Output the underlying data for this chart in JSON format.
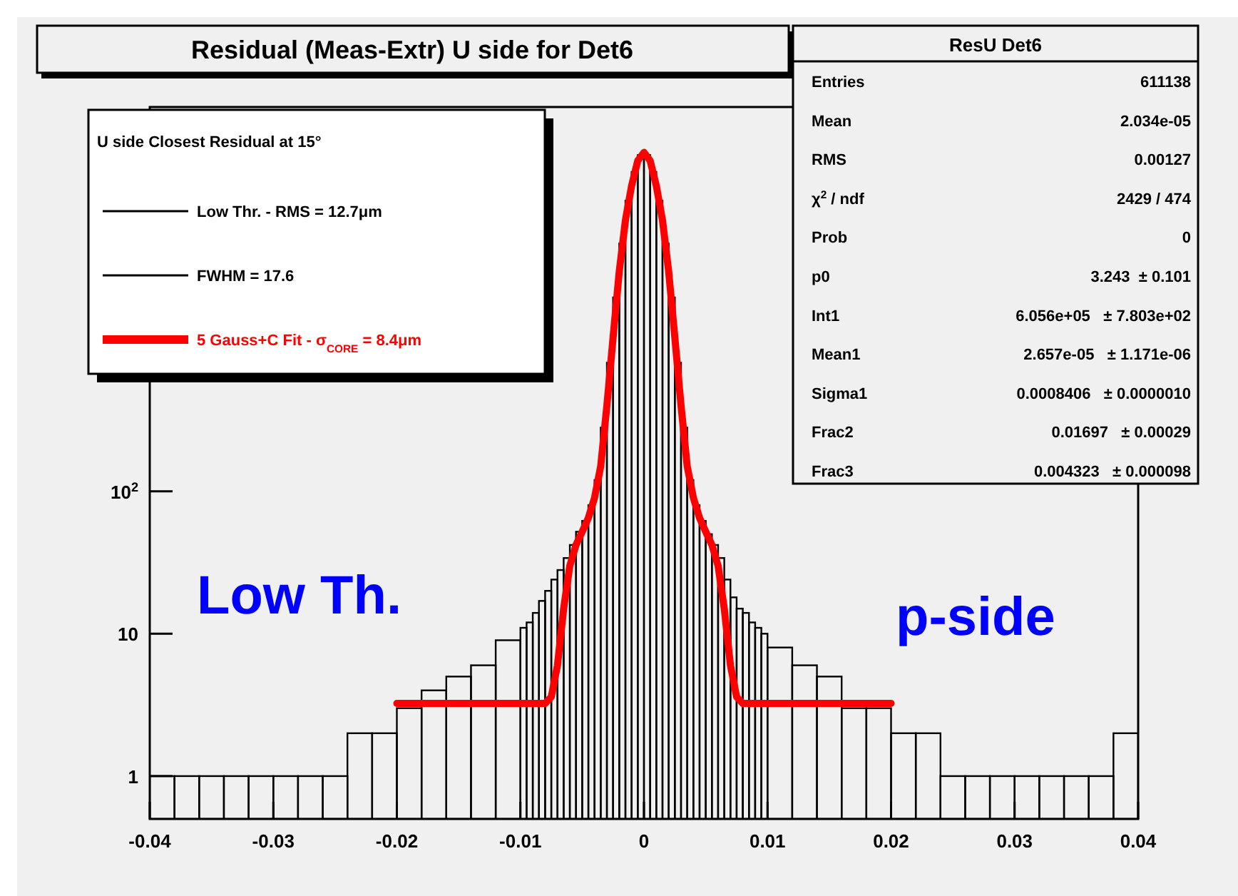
{
  "chart_data": {
    "type": "histogram",
    "title": "Residual (Meas-Extr) U side for Det6",
    "legend_title": "U side Closest Residual at 15°",
    "log": "y",
    "legend": "top left",
    "xlim": [
      -0.04,
      0.04
    ],
    "xticks": [
      -0.04,
      -0.03,
      -0.02,
      -0.01,
      0,
      0.01,
      0.02,
      0.03,
      0.04
    ],
    "ylim": [
      0.5,
      50000
    ],
    "yticks": [
      1,
      10,
      {
        "value": 100,
        "label": "10$^{2}$"
      }
    ],
    "bins": [
      -0.04,
      -0.038,
      -0.036,
      -0.034,
      -0.032,
      -0.03,
      -0.028,
      -0.026,
      -0.024,
      -0.022,
      -0.02,
      -0.018,
      -0.016,
      -0.014,
      -0.012,
      -0.01,
      -0.0095,
      -0.009,
      -0.0085,
      -0.008,
      -0.0075,
      -0.007,
      -0.0065,
      -0.006,
      -0.0055,
      -0.005,
      -0.0045,
      -0.004,
      -0.0035,
      -0.003,
      -0.0025,
      -0.002,
      -0.0015,
      -0.001,
      -0.0005,
      0,
      0.0005,
      0.001,
      0.0015,
      0.002,
      0.0025,
      0.003,
      0.0035,
      0.004,
      0.0045,
      0.005,
      0.0055,
      0.006,
      0.0065,
      0.007,
      0.0075,
      0.008,
      0.0085,
      0.009,
      0.0095,
      0.01,
      0.012,
      0.014,
      0.016,
      0.018,
      0.02,
      0.022,
      0.024,
      0.026,
      0.028,
      0.03,
      0.032,
      0.034,
      0.036,
      0.038,
      0.04
    ],
    "series": [
      {
        "name": "Low Thr. - RMS = 12.7μm",
        "color": "#000000",
        "values": [
          1,
          1,
          1,
          1,
          1,
          1,
          1,
          1,
          2,
          2,
          3,
          4,
          5,
          6,
          9,
          11,
          12,
          14,
          17,
          20,
          24,
          28,
          34,
          42,
          52,
          62,
          80,
          120,
          280,
          800,
          2300,
          5500,
          11000,
          17500,
          23000,
          23000,
          17500,
          11000,
          5500,
          2300,
          800,
          280,
          120,
          80,
          62,
          50,
          42,
          34,
          24,
          18,
          15,
          14,
          12,
          11,
          10,
          8,
          6,
          5,
          3,
          3,
          2,
          2,
          1,
          1,
          1,
          1,
          1,
          1,
          1,
          2
        ]
      },
      {
        "type": "line",
        "name": "5 Gauss+C Fit - σ$_{CORE}$ = 8.4μm",
        "color": "#ff0000",
        "x": [
          -0.02,
          -0.008,
          -0.0075,
          -0.007,
          -0.0065,
          -0.006,
          -0.0055,
          -0.005,
          -0.0045,
          -0.004,
          -0.0035,
          -0.003,
          -0.0025,
          -0.002,
          -0.0015,
          -0.001,
          -0.0005,
          0,
          0.0005,
          0.001,
          0.0015,
          0.002,
          0.0025,
          0.003,
          0.0035,
          0.004,
          0.0045,
          0.005,
          0.0055,
          0.006,
          0.0065,
          0.007,
          0.0075,
          0.008,
          0.02
        ],
        "values": [
          3.24,
          3.24,
          3.6,
          6,
          15,
          30,
          42,
          52,
          65,
          90,
          150,
          400,
          1200,
          3500,
          8000,
          14000,
          21000,
          24000,
          21000,
          14000,
          8000,
          3500,
          1200,
          400,
          150,
          90,
          65,
          52,
          42,
          30,
          15,
          6,
          3.6,
          3.24,
          3.24
        ]
      }
    ],
    "annotations": [
      "FWHM = 17.6",
      "Low Th.",
      "p-side",
      "ResU  Det6",
      "Entries",
      "611138",
      "Mean",
      "2.034e-05",
      "RMS",
      "0.00127",
      "χ$^{2}$ / ndf",
      "2429 / 474",
      "Prob",
      "0",
      "p0",
      "3.243  ± 0.101",
      "Int1",
      "6.056e+05   ± 7.803e+02",
      "Mean1",
      "2.657e-05   ± 1.171e-06",
      "Sigma1",
      "0.0008406   ± 0.0000010",
      "Frac2",
      "0.01697   ± 0.00029",
      "Frac3",
      "0.004323   ± 0.000098"
    ]
  }
}
